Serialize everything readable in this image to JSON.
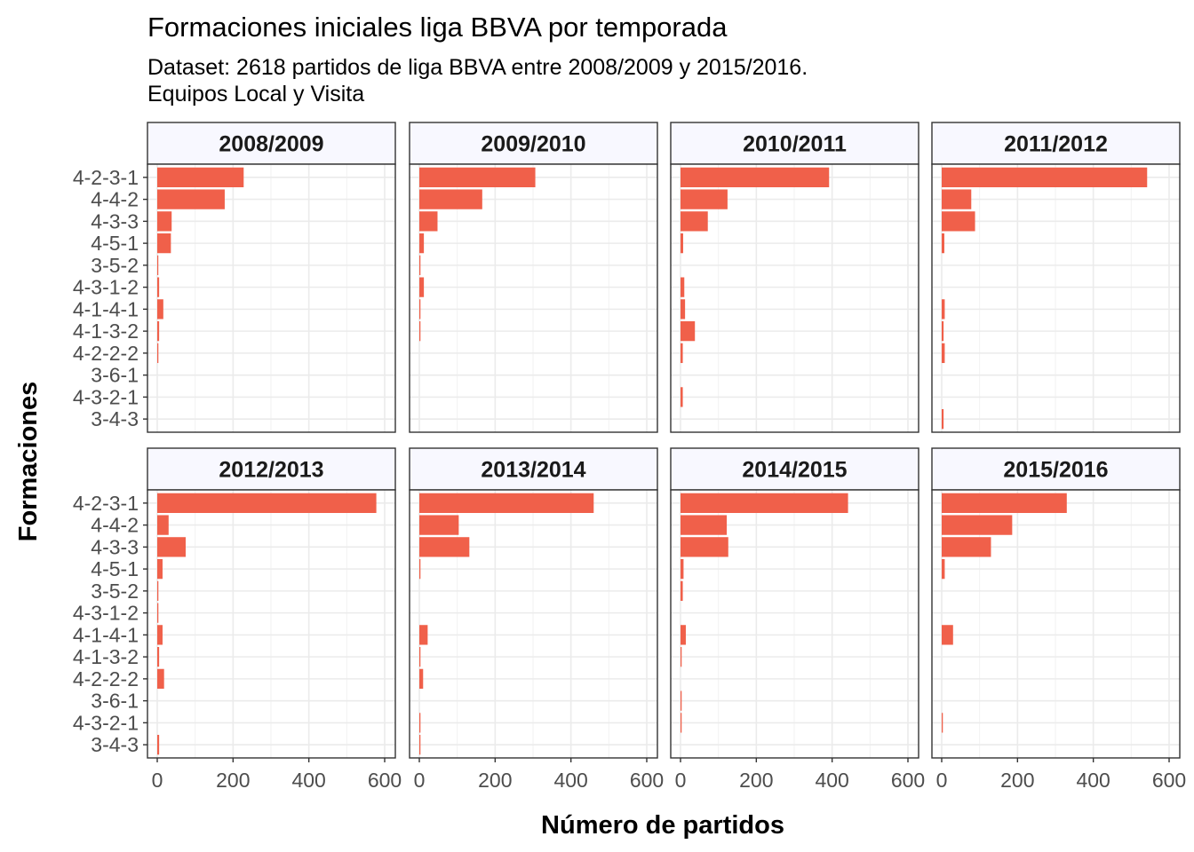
{
  "chart_data": {
    "type": "bar",
    "orientation": "horizontal",
    "faceted": true,
    "title": "Formaciones iniciales liga BBVA por temporada",
    "subtitle_lines": [
      "Dataset: 2618 partidos de liga BBVA entre 2008/2009 y 2015/2016.",
      "Equipos Local y Visita"
    ],
    "xlabel": "Número de partidos",
    "ylabel": "Formaciones",
    "xlim": [
      0,
      600
    ],
    "x_ticks": [
      0,
      200,
      400,
      600
    ],
    "x_tick_labels": [
      "0",
      "200",
      "400",
      "600"
    ],
    "categories": [
      "4-2-3-1",
      "4-4-2",
      "4-3-3",
      "4-5-1",
      "3-5-2",
      "4-3-1-2",
      "4-1-4-1",
      "4-1-3-2",
      "4-2-2-2",
      "3-6-1",
      "4-3-2-1",
      "3-4-3"
    ],
    "bar_color": "#F0604A",
    "strip_fill": "#F8F8FF",
    "grid": true,
    "facets": [
      {
        "name": "2008/2009",
        "values": [
          228,
          178,
          38,
          36,
          1,
          5,
          16,
          5,
          3,
          0,
          0,
          0
        ]
      },
      {
        "name": "2009/2010",
        "values": [
          306,
          166,
          48,
          12,
          3,
          12,
          3,
          3,
          0,
          0,
          0,
          0
        ]
      },
      {
        "name": "2010/2011",
        "values": [
          392,
          124,
          72,
          7,
          0,
          10,
          12,
          38,
          6,
          0,
          6,
          0
        ]
      },
      {
        "name": "2011/2012",
        "values": [
          542,
          78,
          88,
          7,
          0,
          0,
          8,
          5,
          8,
          0,
          0,
          5
        ]
      },
      {
        "name": "2012/2013",
        "values": [
          578,
          30,
          75,
          14,
          3,
          3,
          14,
          5,
          18,
          0,
          0,
          5
        ]
      },
      {
        "name": "2013/2014",
        "values": [
          460,
          104,
          132,
          3,
          0,
          0,
          22,
          3,
          10,
          0,
          3,
          3
        ]
      },
      {
        "name": "2014/2015",
        "values": [
          442,
          122,
          126,
          8,
          6,
          0,
          14,
          3,
          0,
          3,
          3,
          0
        ]
      },
      {
        "name": "2015/2016",
        "values": [
          330,
          186,
          130,
          8,
          0,
          0,
          30,
          0,
          0,
          0,
          3,
          0
        ]
      }
    ]
  }
}
